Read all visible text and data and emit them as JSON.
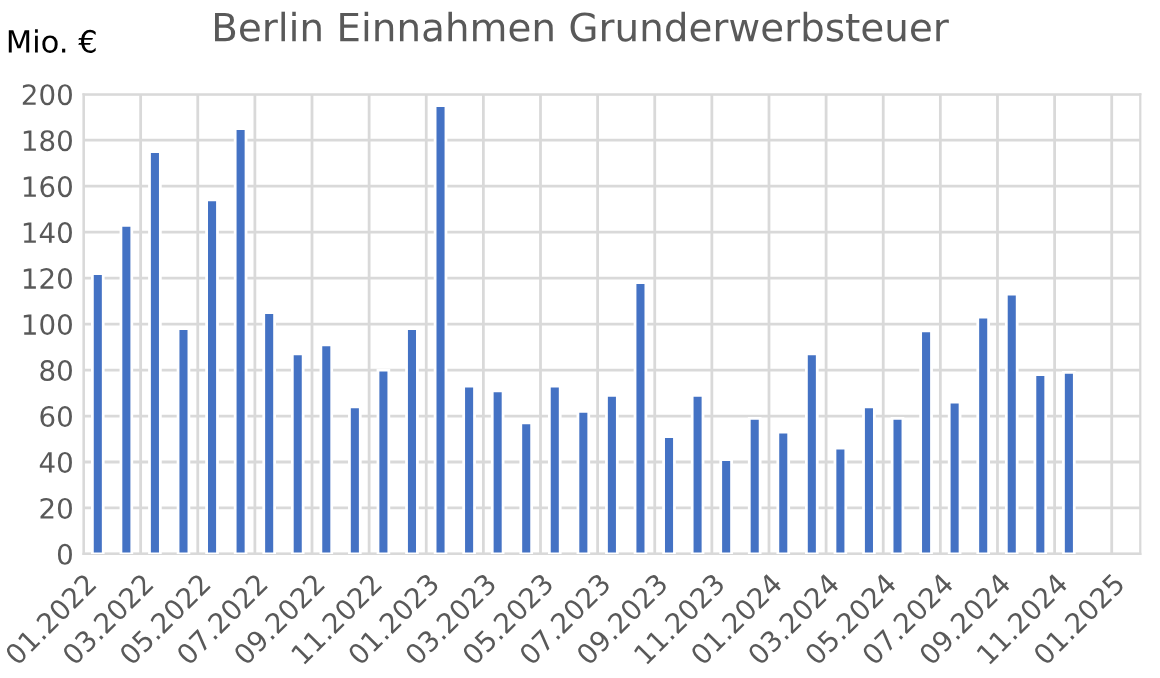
{
  "chart_data": {
    "type": "bar",
    "title": "Berlin Einnahmen Grunderwerbsteuer",
    "ylabel": "Mio. €",
    "categories": [
      "01.2022",
      null,
      "03.2022",
      null,
      "05.2022",
      null,
      "07.2022",
      null,
      "09.2022",
      null,
      "11.2022",
      null,
      "01.2023",
      null,
      "03.2023",
      null,
      "05.2023",
      null,
      "07.2023",
      null,
      "09.2023",
      null,
      "11.2023",
      null,
      "01.2024",
      null,
      "03.2024",
      null,
      "05.2024",
      null,
      "07.2024",
      null,
      "09.2024",
      null,
      "11.2024",
      null,
      "01.2025"
    ],
    "values": [
      122,
      143,
      175,
      98,
      154,
      185,
      105,
      87,
      91,
      64,
      80,
      98,
      195,
      73,
      71,
      57,
      73,
      62,
      69,
      118,
      51,
      69,
      41,
      59,
      53,
      87,
      46,
      64,
      59,
      97,
      66,
      103,
      113,
      78,
      79,
      null,
      null
    ],
    "color": "#4472c4",
    "ylim": [
      0,
      200
    ],
    "yticks": [
      0,
      20,
      40,
      60,
      80,
      100,
      120,
      140,
      160,
      180,
      200
    ],
    "grid": true
  }
}
